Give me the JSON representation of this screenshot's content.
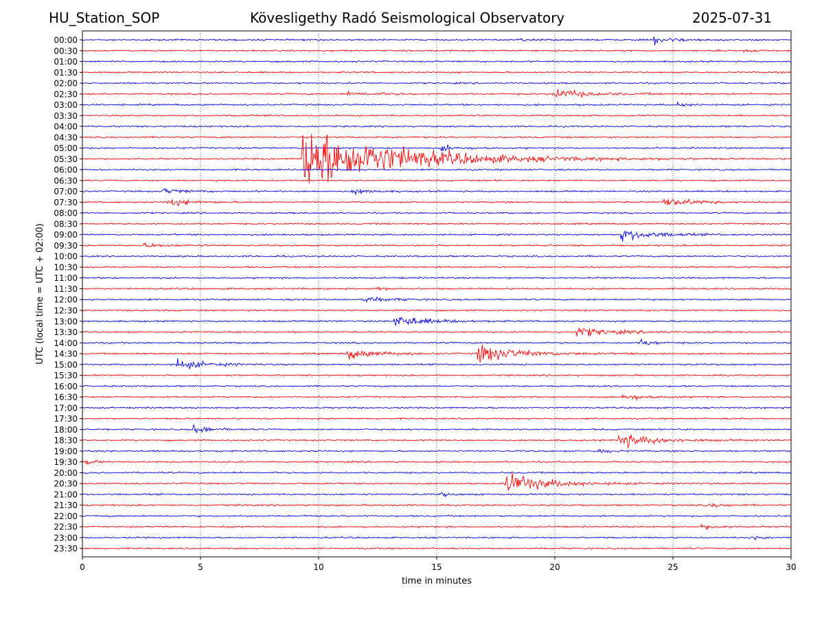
{
  "header": {
    "station": "HU_Station_SOP",
    "title": "Kövesligethy Radó Seismological Observatory",
    "date": "2025-07-31"
  },
  "chart_data": {
    "type": "line",
    "title": "Kövesligethy Radó Seismological Observatory",
    "xlabel": "time in minutes",
    "ylabel": "UTC (local time = UTC + 02:00)",
    "xlim": [
      0,
      30
    ],
    "x_ticks": [
      0,
      5,
      10,
      15,
      20,
      25,
      30
    ],
    "grid": "vertical dotted",
    "colors": [
      "#0000ee",
      "#ff0000"
    ],
    "rows": [
      "00:00",
      "00:30",
      "01:00",
      "01:30",
      "02:00",
      "02:30",
      "03:00",
      "03:30",
      "04:00",
      "04:30",
      "05:00",
      "05:30",
      "06:00",
      "06:30",
      "07:00",
      "07:30",
      "08:00",
      "08:30",
      "09:00",
      "09:30",
      "10:00",
      "10:30",
      "11:00",
      "11:30",
      "12:00",
      "12:30",
      "13:00",
      "13:30",
      "14:00",
      "14:30",
      "15:00",
      "15:30",
      "16:00",
      "16:30",
      "17:00",
      "17:30",
      "18:00",
      "18:30",
      "19:00",
      "19:30",
      "20:00",
      "20:30",
      "21:00",
      "21:30",
      "22:00",
      "22:30",
      "23:00",
      "23:30"
    ],
    "events": [
      {
        "row": "00:00",
        "minute": 18.5,
        "amplitude": 3,
        "duration": 1.2
      },
      {
        "row": "00:00",
        "minute": 24.2,
        "amplitude": 8,
        "duration": 1.8
      },
      {
        "row": "00:30",
        "minute": 28.0,
        "amplitude": 2.5,
        "duration": 1.0
      },
      {
        "row": "02:30",
        "minute": 11.2,
        "amplitude": 4,
        "duration": 2.5
      },
      {
        "row": "02:30",
        "minute": 19.9,
        "amplitude": 10,
        "duration": 3.0
      },
      {
        "row": "03:00",
        "minute": 25.2,
        "amplitude": 5,
        "duration": 0.8
      },
      {
        "row": "05:00",
        "minute": 15.2,
        "amplitude": 6,
        "duration": 1.5
      },
      {
        "row": "05:30",
        "minute": 9.3,
        "amplitude": 70,
        "duration": 8.0
      },
      {
        "row": "07:00",
        "minute": 3.4,
        "amplitude": 6,
        "duration": 1.8
      },
      {
        "row": "07:00",
        "minute": 11.4,
        "amplitude": 6,
        "duration": 1.5
      },
      {
        "row": "07:30",
        "minute": 3.6,
        "amplitude": 8,
        "duration": 2.0
      },
      {
        "row": "07:30",
        "minute": 24.6,
        "amplitude": 10,
        "duration": 2.5
      },
      {
        "row": "09:00",
        "minute": 22.8,
        "amplitude": 12,
        "duration": 3.0
      },
      {
        "row": "09:30",
        "minute": 2.6,
        "amplitude": 5,
        "duration": 1.5
      },
      {
        "row": "11:30",
        "minute": 12.4,
        "amplitude": 4,
        "duration": 0.8
      },
      {
        "row": "12:00",
        "minute": 11.8,
        "amplitude": 7,
        "duration": 2.0
      },
      {
        "row": "13:00",
        "minute": 13.2,
        "amplitude": 14,
        "duration": 2.5
      },
      {
        "row": "13:30",
        "minute": 20.9,
        "amplitude": 10,
        "duration": 3.0
      },
      {
        "row": "14:00",
        "minute": 23.6,
        "amplitude": 8,
        "duration": 1.0
      },
      {
        "row": "14:30",
        "minute": 11.2,
        "amplitude": 12,
        "duration": 2.5
      },
      {
        "row": "14:30",
        "minute": 16.7,
        "amplitude": 20,
        "duration": 3.5
      },
      {
        "row": "15:00",
        "minute": 4.0,
        "amplitude": 10,
        "duration": 2.5
      },
      {
        "row": "16:30",
        "minute": 22.8,
        "amplitude": 7,
        "duration": 2.0
      },
      {
        "row": "18:00",
        "minute": 4.7,
        "amplitude": 9,
        "duration": 1.5
      },
      {
        "row": "18:30",
        "minute": 22.7,
        "amplitude": 15,
        "duration": 3.0
      },
      {
        "row": "19:00",
        "minute": 21.8,
        "amplitude": 5,
        "duration": 1.2
      },
      {
        "row": "19:30",
        "minute": 0.1,
        "amplitude": 7,
        "duration": 0.8
      },
      {
        "row": "20:30",
        "minute": 17.9,
        "amplitude": 22,
        "duration": 3.5
      },
      {
        "row": "21:00",
        "minute": 15.2,
        "amplitude": 4,
        "duration": 0.8
      },
      {
        "row": "21:30",
        "minute": 26.5,
        "amplitude": 4,
        "duration": 1.5
      },
      {
        "row": "22:30",
        "minute": 26.2,
        "amplitude": 4,
        "duration": 1.8
      },
      {
        "row": "23:00",
        "minute": 28.3,
        "amplitude": 4,
        "duration": 0.8
      }
    ]
  }
}
